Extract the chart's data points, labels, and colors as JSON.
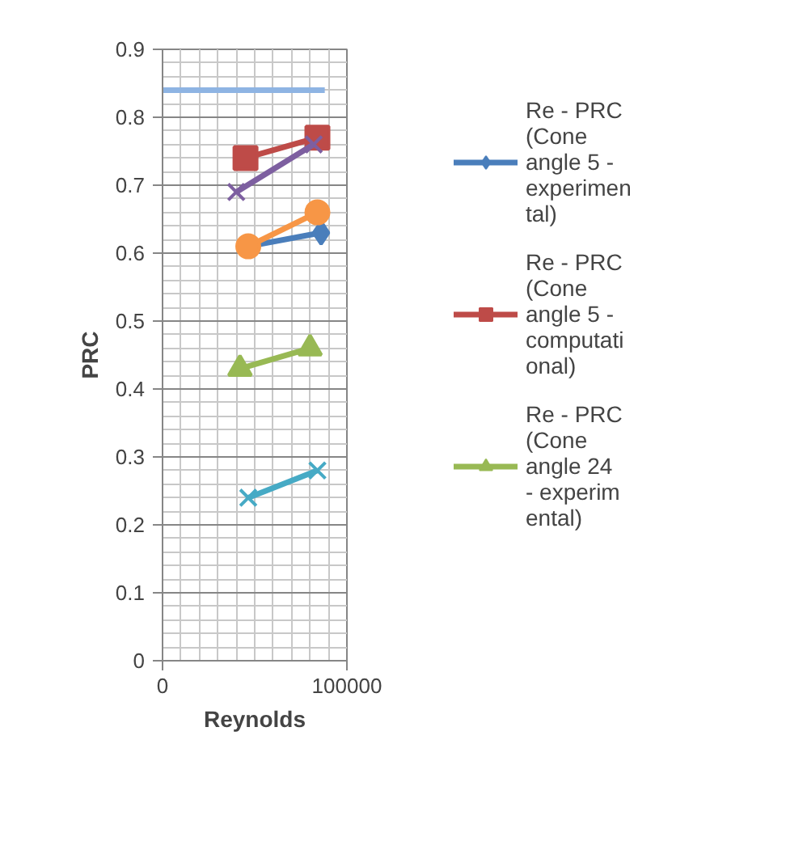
{
  "chart_data": {
    "type": "line",
    "xlabel": "Reynolds",
    "ylabel": "PRC",
    "xlim": [
      0,
      100000
    ],
    "ylim": [
      0,
      0.9
    ],
    "xticks": [
      0,
      100000
    ],
    "yticks": [
      0,
      0.1,
      0.2,
      0.3,
      0.4,
      0.5,
      0.6,
      0.7,
      0.8,
      0.9
    ],
    "grid": true,
    "legend": "right",
    "series": [
      {
        "name": "Re - PRC (Cone angle 5 - experimental)",
        "color": "#4a7ebb",
        "marker": "diamond",
        "x": [
          46500,
          86000
        ],
        "values": [
          0.61,
          0.63
        ]
      },
      {
        "name": "Re - PRC (Cone angle 5 - computational)",
        "color": "#be4b48",
        "marker": "square",
        "x": [
          45000,
          84000
        ],
        "values": [
          0.74,
          0.77
        ]
      },
      {
        "name": "Re - PRC (Cone angle 24 - experimental)",
        "color": "#98b954",
        "marker": "triangle",
        "x": [
          42000,
          80000
        ],
        "values": [
          0.43,
          0.46
        ]
      },
      {
        "color": "#7d5fa0",
        "marker": "cross",
        "x": [
          40000,
          82000
        ],
        "values": [
          0.69,
          0.76
        ]
      },
      {
        "color": "#46aac5",
        "marker": "cross",
        "x": [
          46500,
          84000
        ],
        "values": [
          0.24,
          0.28
        ]
      },
      {
        "color": "#f79646",
        "marker": "circle",
        "x": [
          46500,
          84000
        ],
        "values": [
          0.61,
          0.66
        ]
      },
      {
        "color": "#8eb4e3",
        "marker": "none",
        "x": [
          0,
          88000
        ],
        "values": [
          0.84,
          0.84
        ]
      }
    ]
  }
}
